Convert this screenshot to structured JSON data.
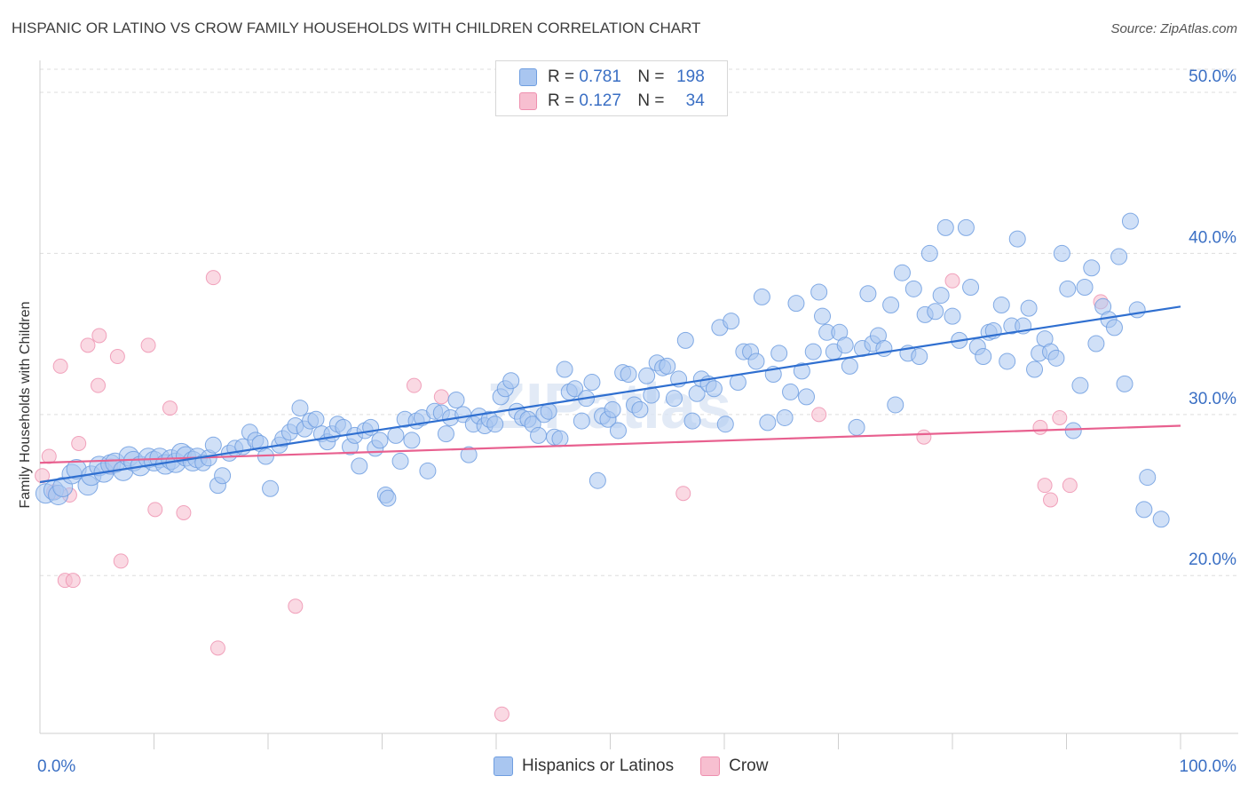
{
  "header": {
    "title": "HISPANIC OR LATINO VS CROW FAMILY HOUSEHOLDS WITH CHILDREN CORRELATION CHART",
    "source": "Source: ZipAtlas.com"
  },
  "legend_top": {
    "rows": [
      {
        "r_label": "R =",
        "r_value": "0.781",
        "n_label": "N =",
        "n_value": "198"
      },
      {
        "r_label": "R =",
        "r_value": "0.127",
        "n_label": "N =",
        "n_value": "34"
      }
    ]
  },
  "legend_bottom": {
    "items": [
      {
        "label": "Hispanics or Latinos"
      },
      {
        "label": "Crow"
      }
    ]
  },
  "colors": {
    "blue_fill": "#a9c6f0",
    "blue_stroke": "#6f9ee0",
    "blue_line": "#2f6fd0",
    "pink_fill": "#f7bfd0",
    "pink_stroke": "#ee8fae",
    "pink_line": "#e8608f",
    "axis_text": "#3a6fc4",
    "grid": "#dddddd"
  },
  "watermark": "ZIPatlas",
  "chart_data": {
    "type": "scatter",
    "title": "HISPANIC OR LATINO VS CROW FAMILY HOUSEHOLDS WITH CHILDREN CORRELATION CHART",
    "xlabel": "",
    "ylabel": "Family Households with Children",
    "xlim": [
      0,
      100
    ],
    "ylim": [
      10.2,
      51.6
    ],
    "x_tick_labels": [
      "0.0%",
      "100.0%"
    ],
    "y_ticks": [
      20,
      30,
      40,
      50
    ],
    "y_tick_labels": [
      "20.0%",
      "30.0%",
      "40.0%",
      "50.0%"
    ],
    "grid": true,
    "legend_position": "bottom",
    "series": [
      {
        "name": "Hispanics or Latinos",
        "color": "#a9c6f0",
        "r": 0.781,
        "n": 198,
        "trend": {
          "x": [
            0,
            100
          ],
          "y": [
            25.8,
            36.7
          ]
        },
        "points": [
          [
            0.5,
            25.1
          ],
          [
            1.2,
            25.3
          ],
          [
            1.6,
            25.0
          ],
          [
            2.0,
            25.5
          ],
          [
            2.8,
            26.3
          ],
          [
            3.2,
            26.6
          ],
          [
            4.2,
            25.6
          ],
          [
            4.5,
            26.2
          ],
          [
            5.2,
            26.8
          ],
          [
            5.6,
            26.4
          ],
          [
            6.2,
            26.9
          ],
          [
            6.6,
            27.0
          ],
          [
            7.3,
            26.5
          ],
          [
            7.8,
            27.4
          ],
          [
            8.2,
            27.1
          ],
          [
            8.8,
            26.8
          ],
          [
            9.5,
            27.3
          ],
          [
            10.0,
            27.1
          ],
          [
            10.5,
            27.3
          ],
          [
            11.0,
            26.9
          ],
          [
            11.5,
            27.2
          ],
          [
            11.9,
            27.0
          ],
          [
            12.4,
            27.6
          ],
          [
            12.8,
            27.4
          ],
          [
            13.4,
            27.1
          ],
          [
            13.8,
            27.3
          ],
          [
            14.3,
            27.0
          ],
          [
            14.8,
            27.3
          ],
          [
            15.2,
            28.1
          ],
          [
            15.6,
            25.6
          ],
          [
            16.0,
            26.2
          ],
          [
            16.6,
            27.6
          ],
          [
            17.1,
            27.9
          ],
          [
            17.8,
            28.0
          ],
          [
            18.4,
            28.9
          ],
          [
            18.9,
            28.4
          ],
          [
            19.3,
            28.2
          ],
          [
            19.8,
            27.4
          ],
          [
            20.2,
            25.4
          ],
          [
            21.0,
            28.1
          ],
          [
            21.3,
            28.5
          ],
          [
            21.9,
            28.9
          ],
          [
            22.4,
            29.3
          ],
          [
            22.8,
            30.4
          ],
          [
            23.2,
            29.1
          ],
          [
            23.7,
            29.6
          ],
          [
            24.2,
            29.7
          ],
          [
            24.7,
            28.8
          ],
          [
            25.2,
            28.3
          ],
          [
            25.6,
            28.8
          ],
          [
            26.1,
            29.4
          ],
          [
            26.6,
            29.2
          ],
          [
            27.2,
            28.0
          ],
          [
            27.6,
            28.7
          ],
          [
            28.0,
            26.8
          ],
          [
            28.5,
            29.0
          ],
          [
            29.0,
            29.2
          ],
          [
            29.4,
            27.9
          ],
          [
            29.8,
            28.4
          ],
          [
            30.3,
            25.0
          ],
          [
            30.5,
            24.8
          ],
          [
            31.2,
            28.7
          ],
          [
            31.6,
            27.1
          ],
          [
            32.0,
            29.7
          ],
          [
            32.6,
            28.4
          ],
          [
            33.0,
            29.6
          ],
          [
            33.5,
            29.8
          ],
          [
            34.0,
            26.5
          ],
          [
            34.6,
            30.2
          ],
          [
            35.2,
            30.1
          ],
          [
            35.6,
            28.8
          ],
          [
            36.0,
            29.8
          ],
          [
            36.5,
            30.9
          ],
          [
            37.1,
            30.0
          ],
          [
            37.6,
            27.5
          ],
          [
            38.0,
            29.4
          ],
          [
            38.5,
            29.9
          ],
          [
            39.0,
            29.3
          ],
          [
            39.4,
            29.7
          ],
          [
            39.9,
            29.4
          ],
          [
            40.4,
            31.1
          ],
          [
            40.8,
            31.6
          ],
          [
            41.3,
            32.1
          ],
          [
            41.8,
            30.2
          ],
          [
            42.3,
            29.8
          ],
          [
            42.8,
            29.7
          ],
          [
            43.2,
            29.4
          ],
          [
            43.7,
            28.7
          ],
          [
            44.2,
            30.0
          ],
          [
            44.6,
            30.2
          ],
          [
            45.1,
            28.6
          ],
          [
            45.6,
            28.5
          ],
          [
            46.0,
            32.8
          ],
          [
            46.4,
            31.4
          ],
          [
            46.9,
            31.6
          ],
          [
            47.5,
            29.6
          ],
          [
            47.9,
            31.0
          ],
          [
            48.4,
            32.0
          ],
          [
            48.9,
            25.9
          ],
          [
            49.3,
            29.9
          ],
          [
            49.8,
            29.7
          ],
          [
            50.2,
            30.3
          ],
          [
            50.7,
            29.0
          ],
          [
            51.1,
            32.6
          ],
          [
            51.6,
            32.5
          ],
          [
            52.1,
            30.6
          ],
          [
            52.6,
            30.3
          ],
          [
            53.2,
            32.4
          ],
          [
            53.6,
            31.2
          ],
          [
            54.1,
            33.2
          ],
          [
            54.6,
            32.9
          ],
          [
            55.0,
            33.0
          ],
          [
            55.6,
            31.0
          ],
          [
            56.0,
            32.2
          ],
          [
            56.6,
            34.6
          ],
          [
            57.2,
            29.6
          ],
          [
            57.6,
            31.3
          ],
          [
            58.0,
            32.2
          ],
          [
            58.6,
            31.9
          ],
          [
            59.1,
            31.6
          ],
          [
            59.6,
            35.4
          ],
          [
            60.1,
            29.4
          ],
          [
            60.6,
            35.8
          ],
          [
            61.2,
            32.0
          ],
          [
            61.7,
            33.9
          ],
          [
            62.3,
            33.9
          ],
          [
            62.8,
            33.3
          ],
          [
            63.3,
            37.3
          ],
          [
            63.8,
            29.5
          ],
          [
            64.3,
            32.5
          ],
          [
            64.8,
            33.8
          ],
          [
            65.3,
            29.8
          ],
          [
            65.8,
            31.4
          ],
          [
            66.3,
            36.9
          ],
          [
            66.8,
            32.7
          ],
          [
            67.2,
            31.1
          ],
          [
            67.8,
            33.9
          ],
          [
            68.3,
            37.6
          ],
          [
            68.6,
            36.1
          ],
          [
            69.0,
            35.1
          ],
          [
            69.6,
            33.9
          ],
          [
            70.1,
            35.1
          ],
          [
            70.6,
            34.3
          ],
          [
            71.0,
            33.0
          ],
          [
            71.6,
            29.2
          ],
          [
            72.1,
            34.1
          ],
          [
            72.6,
            37.5
          ],
          [
            73.0,
            34.4
          ],
          [
            73.5,
            34.9
          ],
          [
            74.0,
            34.1
          ],
          [
            74.6,
            36.8
          ],
          [
            75.0,
            30.6
          ],
          [
            75.6,
            38.8
          ],
          [
            76.1,
            33.8
          ],
          [
            76.6,
            37.8
          ],
          [
            77.1,
            33.6
          ],
          [
            77.6,
            36.2
          ],
          [
            78.0,
            40.0
          ],
          [
            78.5,
            36.4
          ],
          [
            79.0,
            37.4
          ],
          [
            79.4,
            41.6
          ],
          [
            80.0,
            36.1
          ],
          [
            80.6,
            34.6
          ],
          [
            81.2,
            41.6
          ],
          [
            81.6,
            37.9
          ],
          [
            82.2,
            34.2
          ],
          [
            82.7,
            33.6
          ],
          [
            83.2,
            35.1
          ],
          [
            83.6,
            35.2
          ],
          [
            84.3,
            36.8
          ],
          [
            84.8,
            33.3
          ],
          [
            85.2,
            35.5
          ],
          [
            85.7,
            40.9
          ],
          [
            86.2,
            35.5
          ],
          [
            86.7,
            36.6
          ],
          [
            87.2,
            32.8
          ],
          [
            87.6,
            33.8
          ],
          [
            88.1,
            34.7
          ],
          [
            88.6,
            33.9
          ],
          [
            89.1,
            33.5
          ],
          [
            89.6,
            40.0
          ],
          [
            90.1,
            37.8
          ],
          [
            90.6,
            29.0
          ],
          [
            91.2,
            31.8
          ],
          [
            91.6,
            37.9
          ],
          [
            92.2,
            39.1
          ],
          [
            92.6,
            34.4
          ],
          [
            93.2,
            36.7
          ],
          [
            93.7,
            35.9
          ],
          [
            94.2,
            35.4
          ],
          [
            94.6,
            39.8
          ],
          [
            95.1,
            31.9
          ],
          [
            95.6,
            42.0
          ],
          [
            96.2,
            36.5
          ],
          [
            96.8,
            24.1
          ],
          [
            97.1,
            26.1
          ],
          [
            98.3,
            23.5
          ]
        ]
      },
      {
        "name": "Crow",
        "color": "#f7bfd0",
        "r": 0.127,
        "n": 34,
        "trend": {
          "x": [
            0,
            100
          ],
          "y": [
            27.0,
            29.3
          ]
        },
        "points": [
          [
            0.2,
            26.2
          ],
          [
            0.8,
            27.4
          ],
          [
            1.2,
            25.2
          ],
          [
            1.8,
            33.0
          ],
          [
            2.2,
            19.7
          ],
          [
            2.6,
            25.0
          ],
          [
            2.9,
            19.7
          ],
          [
            3.4,
            28.2
          ],
          [
            4.2,
            34.3
          ],
          [
            5.1,
            31.8
          ],
          [
            5.2,
            34.9
          ],
          [
            6.2,
            26.8
          ],
          [
            6.8,
            33.6
          ],
          [
            7.1,
            20.9
          ],
          [
            9.5,
            34.3
          ],
          [
            10.1,
            24.1
          ],
          [
            11.4,
            30.4
          ],
          [
            12.6,
            23.9
          ],
          [
            15.2,
            38.5
          ],
          [
            15.6,
            15.5
          ],
          [
            22.4,
            18.1
          ],
          [
            32.8,
            31.8
          ],
          [
            35.2,
            31.1
          ],
          [
            40.5,
            11.4
          ],
          [
            56.4,
            25.1
          ],
          [
            68.3,
            30.0
          ],
          [
            77.5,
            28.6
          ],
          [
            80.0,
            38.3
          ],
          [
            87.7,
            29.2
          ],
          [
            88.1,
            25.6
          ],
          [
            88.6,
            24.7
          ],
          [
            89.4,
            29.8
          ],
          [
            90.3,
            25.6
          ],
          [
            93.0,
            37.0
          ]
        ]
      }
    ]
  }
}
